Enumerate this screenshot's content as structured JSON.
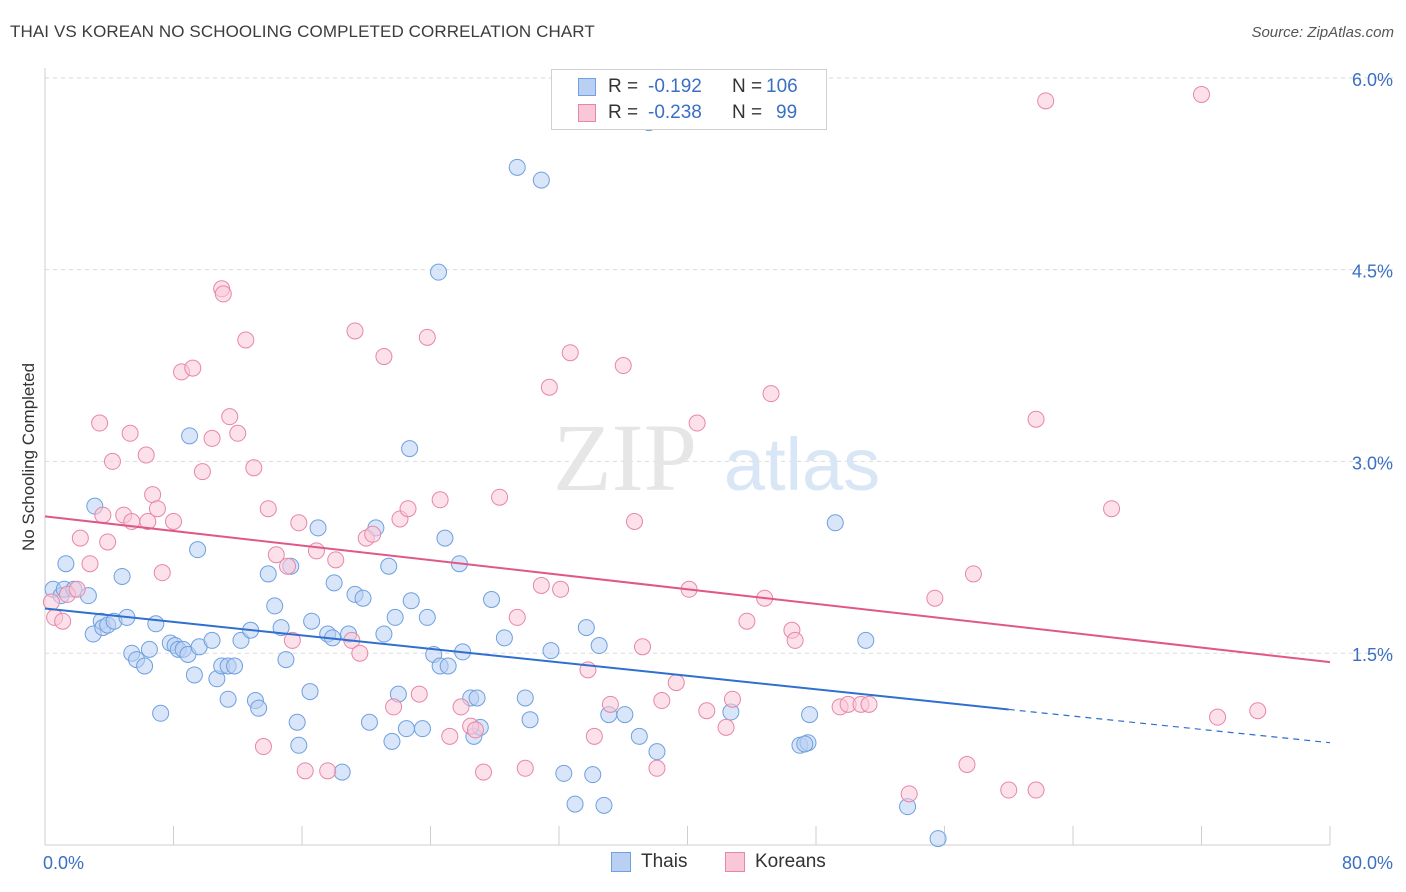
{
  "title": "THAI VS KOREAN NO SCHOOLING COMPLETED CORRELATION CHART",
  "source": "Source: ZipAtlas.com",
  "watermark": {
    "zip": "ZIP",
    "atlas": "atlas"
  },
  "legend_top": [
    {
      "label": "R =",
      "r": "-0.192",
      "n_label": "N =",
      "n": "106",
      "color": "#6fa0e0",
      "fill": "#b9d0f2"
    },
    {
      "label": "R =",
      "r": "-0.238",
      "n_label": "N =",
      "n": "99",
      "color": "#e886a8",
      "fill": "#f9c8d8"
    }
  ],
  "legend_bottom": [
    {
      "label": "Thais",
      "color": "#6fa0e0",
      "fill": "#b9d0f2"
    },
    {
      "label": "Koreans",
      "color": "#e886a8",
      "fill": "#f9c8d8"
    }
  ],
  "chart_data": {
    "type": "scatter",
    "title": "THAI VS KOREAN NO SCHOOLING COMPLETED CORRELATION CHART",
    "xlabel": "",
    "ylabel": "No Schooling Completed",
    "xlim": [
      0,
      80
    ],
    "ylim": [
      0,
      6.3
    ],
    "x_tick_labels": [
      "0.0%",
      "80.0%"
    ],
    "y_ticks": [
      1.5,
      3.0,
      4.5,
      6.0
    ],
    "y_tick_labels": [
      "1.5%",
      "3.0%",
      "4.5%",
      "6.0%"
    ],
    "grid": true,
    "legend_position": "top-center",
    "series": [
      {
        "name": "Thais",
        "color": "#6fa0e0",
        "fill": "#b9d0f2",
        "trend": {
          "x0": 0,
          "y0": 1.85,
          "x1": 60,
          "y1": 1.06,
          "dash_to_x": 80,
          "dash_to_y": 0.8,
          "color": "#2f6fd0"
        },
        "points": [
          [
            0.5,
            2.0
          ],
          [
            1.0,
            1.95
          ],
          [
            1.3,
            2.2
          ],
          [
            1.2,
            2.0
          ],
          [
            1.8,
            2.0
          ],
          [
            2.7,
            1.95
          ],
          [
            3.0,
            1.65
          ],
          [
            3.1,
            2.65
          ],
          [
            3.5,
            1.75
          ],
          [
            3.6,
            1.7
          ],
          [
            3.9,
            1.72
          ],
          [
            4.3,
            1.75
          ],
          [
            4.8,
            2.1
          ],
          [
            5.1,
            1.78
          ],
          [
            5.4,
            1.5
          ],
          [
            5.7,
            1.45
          ],
          [
            6.2,
            1.4
          ],
          [
            6.5,
            1.53
          ],
          [
            6.9,
            1.73
          ],
          [
            7.2,
            1.03
          ],
          [
            7.8,
            1.58
          ],
          [
            8.1,
            1.56
          ],
          [
            8.3,
            1.53
          ],
          [
            8.6,
            1.53
          ],
          [
            8.9,
            1.49
          ],
          [
            9.0,
            3.2
          ],
          [
            9.3,
            1.33
          ],
          [
            9.5,
            2.31
          ],
          [
            9.6,
            1.55
          ],
          [
            10.4,
            1.6
          ],
          [
            10.7,
            1.3
          ],
          [
            11.0,
            1.4
          ],
          [
            11.4,
            1.4
          ],
          [
            11.4,
            1.14
          ],
          [
            11.8,
            1.4
          ],
          [
            12.2,
            1.6
          ],
          [
            12.8,
            1.68
          ],
          [
            13.1,
            1.13
          ],
          [
            13.3,
            1.07
          ],
          [
            13.9,
            2.12
          ],
          [
            14.3,
            1.87
          ],
          [
            14.7,
            1.7
          ],
          [
            15.0,
            1.45
          ],
          [
            15.3,
            2.18
          ],
          [
            15.7,
            0.96
          ],
          [
            15.8,
            0.78
          ],
          [
            16.5,
            1.2
          ],
          [
            16.6,
            1.75
          ],
          [
            17.0,
            2.48
          ],
          [
            17.6,
            1.65
          ],
          [
            17.9,
            1.62
          ],
          [
            18.0,
            2.05
          ],
          [
            18.5,
            0.57
          ],
          [
            18.9,
            1.65
          ],
          [
            19.3,
            1.96
          ],
          [
            19.8,
            1.93
          ],
          [
            20.2,
            0.96
          ],
          [
            20.6,
            2.48
          ],
          [
            21.1,
            1.65
          ],
          [
            21.4,
            2.18
          ],
          [
            21.8,
            1.78
          ],
          [
            21.6,
            0.81
          ],
          [
            22.0,
            1.18
          ],
          [
            22.5,
            0.91
          ],
          [
            22.8,
            1.91
          ],
          [
            22.7,
            3.1
          ],
          [
            23.5,
            0.91
          ],
          [
            23.8,
            1.78
          ],
          [
            24.2,
            1.49
          ],
          [
            24.6,
            1.4
          ],
          [
            24.9,
            2.4
          ],
          [
            25.1,
            1.4
          ],
          [
            25.8,
            2.2
          ],
          [
            26.0,
            1.51
          ],
          [
            26.5,
            1.15
          ],
          [
            26.7,
            0.85
          ],
          [
            26.9,
            1.15
          ],
          [
            27.1,
            0.92
          ],
          [
            27.8,
            1.92
          ],
          [
            28.6,
            1.62
          ],
          [
            29.4,
            5.3
          ],
          [
            30.9,
            5.2
          ],
          [
            30.2,
            0.98
          ],
          [
            29.9,
            1.15
          ],
          [
            31.5,
            1.52
          ],
          [
            32.3,
            0.56
          ],
          [
            33.0,
            0.32
          ],
          [
            33.7,
            1.7
          ],
          [
            34.5,
            1.56
          ],
          [
            34.1,
            0.55
          ],
          [
            34.8,
            0.31
          ],
          [
            35.1,
            1.02
          ],
          [
            36.1,
            1.02
          ],
          [
            37.0,
            0.85
          ],
          [
            38.1,
            0.73
          ],
          [
            42.7,
            1.04
          ],
          [
            47.0,
            0.78
          ],
          [
            47.5,
            0.8
          ],
          [
            47.6,
            1.02
          ],
          [
            47.3,
            0.79
          ],
          [
            49.2,
            2.52
          ],
          [
            51.1,
            1.6
          ],
          [
            53.7,
            0.3
          ],
          [
            55.6,
            0.05
          ],
          [
            37.6,
            5.65
          ],
          [
            24.5,
            4.48
          ]
        ]
      },
      {
        "name": "Koreans",
        "color": "#e886a8",
        "fill": "#f9c8d8",
        "trend": {
          "x0": 0,
          "y0": 2.57,
          "x1": 80,
          "y1": 1.43,
          "color": "#e0588a"
        },
        "points": [
          [
            0.6,
            1.78
          ],
          [
            1.4,
            1.96
          ],
          [
            2.2,
            2.4
          ],
          [
            2.8,
            2.2
          ],
          [
            3.4,
            3.3
          ],
          [
            3.6,
            2.58
          ],
          [
            3.9,
            2.37
          ],
          [
            4.2,
            3.0
          ],
          [
            4.9,
            2.58
          ],
          [
            5.3,
            3.22
          ],
          [
            5.4,
            2.53
          ],
          [
            6.3,
            3.05
          ],
          [
            6.4,
            2.53
          ],
          [
            6.7,
            2.74
          ],
          [
            7.0,
            2.63
          ],
          [
            7.3,
            2.13
          ],
          [
            8.5,
            3.7
          ],
          [
            9.2,
            3.73
          ],
          [
            9.8,
            2.92
          ],
          [
            10.4,
            3.18
          ],
          [
            11.0,
            4.35
          ],
          [
            11.1,
            4.31
          ],
          [
            11.5,
            3.35
          ],
          [
            12.0,
            3.22
          ],
          [
            12.5,
            3.95
          ],
          [
            13.0,
            2.95
          ],
          [
            13.6,
            0.77
          ],
          [
            13.9,
            2.63
          ],
          [
            14.4,
            2.27
          ],
          [
            15.1,
            2.18
          ],
          [
            15.4,
            1.6
          ],
          [
            15.8,
            2.52
          ],
          [
            16.2,
            0.58
          ],
          [
            16.9,
            2.3
          ],
          [
            17.6,
            0.58
          ],
          [
            18.1,
            2.23
          ],
          [
            19.1,
            1.6
          ],
          [
            19.3,
            4.02
          ],
          [
            19.6,
            1.5
          ],
          [
            20.0,
            2.4
          ],
          [
            20.4,
            2.43
          ],
          [
            21.1,
            3.82
          ],
          [
            21.7,
            1.08
          ],
          [
            22.1,
            2.55
          ],
          [
            22.6,
            2.63
          ],
          [
            23.3,
            1.18
          ],
          [
            23.8,
            3.97
          ],
          [
            24.6,
            2.7
          ],
          [
            25.2,
            0.85
          ],
          [
            25.9,
            1.08
          ],
          [
            26.5,
            0.93
          ],
          [
            27.3,
            0.57
          ],
          [
            28.3,
            2.72
          ],
          [
            29.4,
            1.78
          ],
          [
            29.9,
            0.6
          ],
          [
            30.9,
            2.03
          ],
          [
            31.4,
            3.58
          ],
          [
            32.1,
            2.0
          ],
          [
            32.7,
            3.85
          ],
          [
            33.8,
            1.37
          ],
          [
            34.2,
            0.85
          ],
          [
            35.2,
            1.1
          ],
          [
            36.0,
            3.75
          ],
          [
            36.7,
            2.53
          ],
          [
            37.2,
            1.55
          ],
          [
            38.1,
            0.6
          ],
          [
            38.4,
            1.13
          ],
          [
            39.3,
            1.27
          ],
          [
            40.1,
            2.0
          ],
          [
            40.6,
            3.3
          ],
          [
            41.2,
            1.05
          ],
          [
            42.4,
            0.92
          ],
          [
            42.8,
            1.14
          ],
          [
            43.7,
            1.75
          ],
          [
            44.8,
            1.93
          ],
          [
            45.2,
            3.53
          ],
          [
            46.5,
            1.68
          ],
          [
            46.7,
            1.6
          ],
          [
            49.5,
            1.08
          ],
          [
            50.0,
            1.1
          ],
          [
            50.8,
            1.1
          ],
          [
            51.3,
            1.1
          ],
          [
            53.8,
            0.4
          ],
          [
            55.4,
            1.93
          ],
          [
            57.4,
            0.63
          ],
          [
            57.8,
            2.12
          ],
          [
            60.0,
            0.43
          ],
          [
            61.7,
            0.43
          ],
          [
            61.7,
            3.33
          ],
          [
            62.3,
            5.82
          ],
          [
            66.4,
            2.63
          ],
          [
            72.0,
            5.87
          ],
          [
            73.0,
            1.0
          ],
          [
            75.5,
            1.05
          ],
          [
            0.4,
            1.9
          ],
          [
            1.1,
            1.75
          ],
          [
            2.0,
            2.0
          ],
          [
            8.0,
            2.53
          ],
          [
            26.8,
            0.9
          ]
        ]
      }
    ]
  }
}
